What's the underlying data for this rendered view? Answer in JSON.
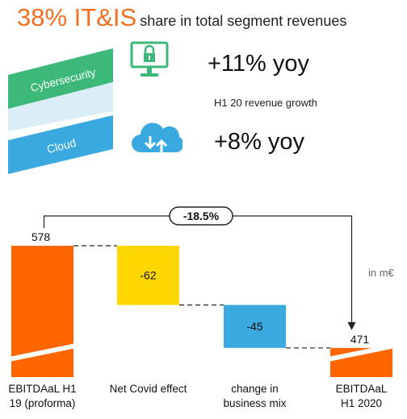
{
  "headline": {
    "big": "38% IT&IS",
    "small": "share in total segment revenues"
  },
  "segments": [
    {
      "label": "Cybersecurity",
      "color": "#3cb878",
      "icon": "lock-monitor-icon",
      "growth": "+11% yoy"
    },
    {
      "label": "Cloud",
      "color": "#3aa9e0",
      "icon": "cloud-transfer-icon",
      "growth": "+8% yoy"
    }
  ],
  "growth_caption": "H1 20 revenue  growth",
  "chart_data": {
    "type": "bar",
    "subtype": "waterfall",
    "categories": [
      "EBITDAaL H1 19 (proforma)",
      "Net Covid  effect",
      "change in business mix",
      "EBITDAaL H1 2020"
    ],
    "category_lines": [
      [
        "EBITDAaL H1",
        "19 (proforma)"
      ],
      [
        "Net Covid  effect"
      ],
      [
        "change in",
        "business mix"
      ],
      [
        "EBITDAaL",
        "H1 2020"
      ]
    ],
    "values": [
      578,
      -62,
      -45,
      471
    ],
    "labels": [
      "578",
      "-62",
      "-45",
      "471"
    ],
    "bar_colors": [
      "#ff6600",
      "#ffd700",
      "#3aa9e0",
      "#ff6600"
    ],
    "total_bars": [
      0,
      3
    ],
    "axis_break": true,
    "change_annotation": "-18.5%",
    "unit_label": "in m€"
  }
}
